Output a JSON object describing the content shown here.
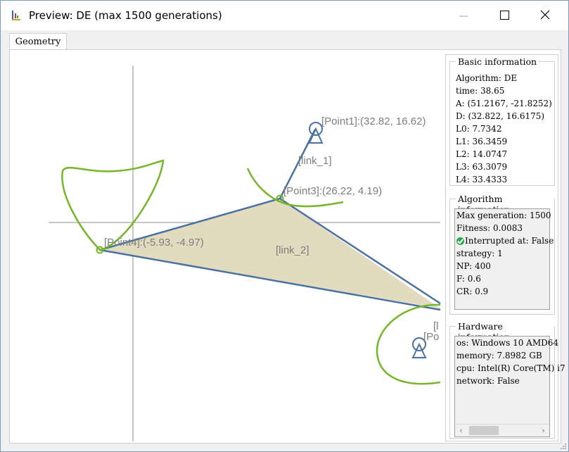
{
  "window": {
    "title": "Preview: DE (max 1500 generations)",
    "minimize_glyph": "─",
    "maximize_glyph": "☐",
    "close_glyph": "✕"
  },
  "tabs": [
    {
      "label": "Geometry",
      "selected": true
    }
  ],
  "geometry": {
    "labels": {
      "point1": "[Point1]:(32.82, 16.62)",
      "point3": "[Point3]:(26.22, 4.19)",
      "point4": "[Point4]:(-5.93, -4.97)",
      "link1": "[link_1]",
      "link2": "[link_2]",
      "clip1": "[l",
      "clip2": "[Po"
    },
    "colors": {
      "link": "#4a72a0",
      "fill": "#e2dbbf",
      "curve": "#76b52a",
      "axis": "#8c8c8c",
      "label": "#7d7d7d"
    }
  },
  "basic_info": {
    "title": "Basic information",
    "lines": [
      "Algorithm: DE",
      "time: 38.65",
      "A: (51.2167, -21.8252)",
      "D: (32.822, 16.6175)",
      "L0: 7.7342",
      "L1: 36.3459",
      "L2: 14.0747",
      "L3: 63.3079",
      "L4: 33.4333"
    ]
  },
  "algorithm_info": {
    "title": "Algorithm information",
    "max_generation": "Max generation: 1500",
    "fitness": "Fitness: 0.0083",
    "interrupted": "Interrupted at: False",
    "strategy": "strategy: 1",
    "np": "NP: 400",
    "f": "F: 0.6",
    "cr": "CR: 0.9"
  },
  "hardware_info": {
    "title": "Hardware information",
    "lines": [
      "os: Windows 10 AMD64",
      "memory: 7.8982 GB",
      "cpu: Intel(R) Core(TM) i7",
      "network: False"
    ],
    "scroll_left": "‹",
    "scroll_right": "›"
  }
}
